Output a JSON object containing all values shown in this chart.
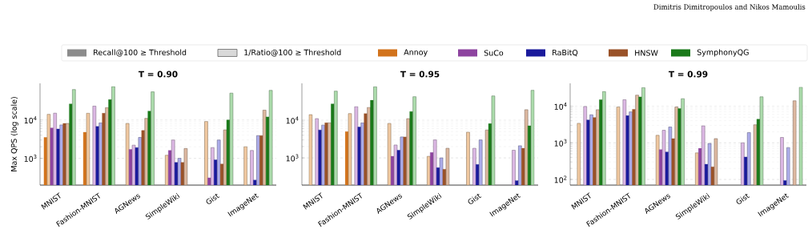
{
  "chart_data": [
    {
      "type": "bar",
      "title": "T = 0.90",
      "ylabel": "Max QPS (log scale)",
      "log": true,
      "grid": "y",
      "legend": "top",
      "annotations": [
        "Dimitris Dimitropoulos and Nikos Mamoulis",
        "Recall@100 ≥ Threshold",
        "1/Ratio@100 ≥ Threshold"
      ],
      "categories": [
        "MNIST",
        "Fashion-MNIST",
        "AGNews",
        "SimpleWiki",
        "Gist",
        "ImageNet"
      ],
      "ylim": [
        200,
        90000
      ],
      "yticks": [
        {
          "value": 1000,
          "label": "10$^{3}$"
        },
        {
          "value": 10000,
          "label": "10$^{4}$"
        }
      ],
      "series": [
        {
          "name": "Annoy",
          "color": "#d2731c",
          "values": [
            3500,
            4800,
            null,
            null,
            null,
            null
          ]
        },
        {
          "color": "#f0c8a0",
          "values": [
            14000,
            15000,
            8100,
            1200,
            9100,
            2000
          ]
        },
        {
          "name": "SuCo",
          "color": "#8e44a0",
          "values": [
            6200,
            null,
            1700,
            1600,
            310,
            null
          ]
        },
        {
          "color": "#dcb8e4",
          "values": [
            15000,
            23000,
            2200,
            3000,
            1900,
            1600
          ]
        },
        {
          "name": "RaBitQ",
          "color": "#1a1a9c",
          "values": [
            5800,
            6800,
            1900,
            780,
            910,
            270
          ]
        },
        {
          "color": "#acacea",
          "values": [
            7400,
            8400,
            3500,
            1000,
            3000,
            3900
          ]
        },
        {
          "name": "HNSW",
          "color": "#9a5228",
          "values": [
            8100,
            15000,
            5300,
            780,
            710,
            3900
          ]
        },
        {
          "color": "#ddb8a0",
          "values": [
            8100,
            21000,
            11000,
            1800,
            5500,
            18000
          ]
        },
        {
          "name": "SymphonyQG",
          "color": "#1a7a1a",
          "values": [
            26000,
            34000,
            17000,
            null,
            10000,
            12000
          ]
        },
        {
          "color": "#acdcac",
          "values": [
            62000,
            74000,
            54000,
            null,
            50000,
            59000
          ]
        }
      ]
    },
    {
      "type": "bar",
      "title": "T = 0.95",
      "log": true,
      "grid": "y",
      "categories": [
        "MNIST",
        "Fashion-MNIST",
        "AGNews",
        "SimpleWiki",
        "Gist",
        "ImageNet"
      ],
      "ylim": [
        190,
        95000
      ],
      "yticks": [
        {
          "value": 1000,
          "label": "10$^{3}$"
        },
        {
          "value": 10000,
          "label": "10$^{4}$"
        }
      ],
      "series": [
        {
          "color": "#d2731c",
          "values": [
            null,
            5000,
            null,
            null,
            null,
            null
          ]
        },
        {
          "color": "#f0c8a0",
          "values": [
            14000,
            15000,
            8200,
            1100,
            4800,
            null
          ]
        },
        {
          "color": "#8e44a0",
          "values": [
            null,
            null,
            1100,
            1400,
            null,
            null
          ]
        },
        {
          "color": "#dcb8e4",
          "values": [
            11000,
            23000,
            2200,
            3000,
            1800,
            1600
          ]
        },
        {
          "color": "#1a1a9c",
          "values": [
            5500,
            6600,
            1600,
            550,
            670,
            250
          ]
        },
        {
          "color": "#acacea",
          "values": [
            7400,
            8500,
            3600,
            1000,
            3000,
            2100
          ]
        },
        {
          "color": "#9a5228",
          "values": [
            8500,
            15000,
            3600,
            500,
            null,
            1800
          ]
        },
        {
          "color": "#ddb8a0",
          "values": [
            8500,
            22000,
            11000,
            1800,
            5500,
            19000
          ]
        },
        {
          "color": "#1a7a1a",
          "values": [
            27000,
            34000,
            17000,
            null,
            8100,
            7100
          ]
        },
        {
          "color": "#acdcac",
          "values": [
            59000,
            77000,
            42000,
            null,
            44000,
            62000
          ]
        }
      ]
    },
    {
      "type": "bar",
      "title": "T = 0.99",
      "log": true,
      "grid": "y",
      "categories": [
        "MNIST",
        "Fashion-MNIST",
        "AGNews",
        "SimpleWiki",
        "Gist",
        "ImageNet"
      ],
      "ylim": [
        70,
        42000
      ],
      "yticks": [
        {
          "value": 100,
          "label": "10$^{2}$"
        },
        {
          "value": 1000,
          "label": "10$^{3}$"
        },
        {
          "value": 10000,
          "label": "10$^{4}$"
        }
      ],
      "series": [
        {
          "color": "#d2731c",
          "values": [
            null,
            null,
            null,
            null,
            null,
            null
          ]
        },
        {
          "color": "#f0c8a0",
          "values": [
            3400,
            9500,
            1600,
            530,
            null,
            null
          ]
        },
        {
          "color": "#8e44a0",
          "values": [
            null,
            null,
            650,
            710,
            null,
            null
          ]
        },
        {
          "color": "#dcb8e4",
          "values": [
            9800,
            15000,
            2200,
            2900,
            1000,
            1400
          ]
        },
        {
          "color": "#1a1a9c",
          "values": [
            4200,
            5500,
            560,
            260,
            410,
            93
          ]
        },
        {
          "color": "#acacea",
          "values": [
            5800,
            7000,
            2700,
            960,
            1900,
            740
          ]
        },
        {
          "color": "#9a5228",
          "values": [
            4900,
            8200,
            1300,
            220,
            null,
            null
          ]
        },
        {
          "color": "#ddb8a0",
          "values": [
            8000,
            20000,
            9500,
            1300,
            3100,
            14000
          ]
        },
        {
          "color": "#1a7a1a",
          "values": [
            15000,
            18000,
            8600,
            null,
            4400,
            null
          ]
        },
        {
          "color": "#acdcac",
          "values": [
            25000,
            32000,
            16000,
            null,
            18000,
            33000
          ]
        }
      ]
    }
  ]
}
